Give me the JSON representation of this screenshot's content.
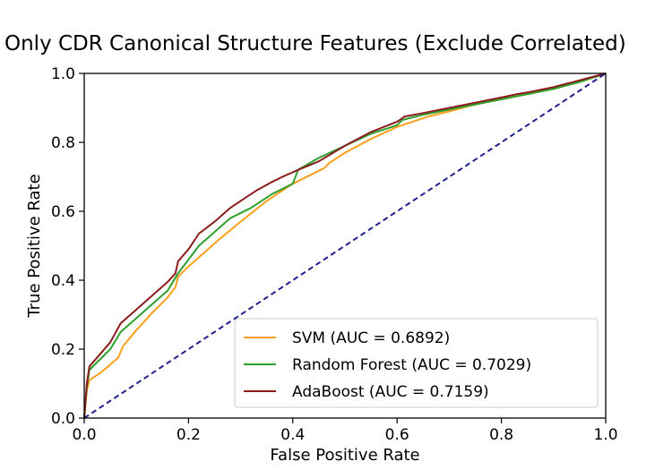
{
  "chart_data": {
    "type": "line",
    "title": "Only CDR Canonical Structure Features (Exclude Correlated)",
    "xlabel": "False Positive Rate",
    "ylabel": "True Positive Rate",
    "xlim": [
      0.0,
      1.0
    ],
    "ylim": [
      0.0,
      1.0
    ],
    "xticks": [
      "0.0",
      "0.2",
      "0.4",
      "0.6",
      "0.8",
      "1.0"
    ],
    "yticks": [
      "0.0",
      "0.2",
      "0.4",
      "0.6",
      "0.8",
      "1.0"
    ],
    "grid": false,
    "legend_position": "lower-right",
    "series": [
      {
        "name": "SVM (AUC = 0.6892)",
        "color": "#ff9e1b",
        "x": [
          0,
          0.005,
          0.01,
          0.03,
          0.05,
          0.065,
          0.075,
          0.1,
          0.13,
          0.16,
          0.175,
          0.18,
          0.2,
          0.23,
          0.26,
          0.3,
          0.35,
          0.4,
          0.44,
          0.46,
          0.47,
          0.5,
          0.55,
          0.6,
          0.65,
          0.66,
          0.7,
          0.75,
          0.8,
          0.85,
          0.9,
          0.95,
          1.0
        ],
        "y": [
          0,
          0.08,
          0.11,
          0.13,
          0.155,
          0.175,
          0.21,
          0.255,
          0.305,
          0.35,
          0.38,
          0.41,
          0.44,
          0.48,
          0.52,
          0.57,
          0.63,
          0.68,
          0.71,
          0.725,
          0.74,
          0.77,
          0.81,
          0.845,
          0.87,
          0.875,
          0.89,
          0.91,
          0.925,
          0.94,
          0.955,
          0.975,
          1.0
        ]
      },
      {
        "name": "Random Forest (AUC = 0.7029)",
        "color": "#2ca02c",
        "x": [
          0,
          0.005,
          0.01,
          0.03,
          0.05,
          0.07,
          0.1,
          0.13,
          0.16,
          0.18,
          0.2,
          0.22,
          0.25,
          0.28,
          0.32,
          0.36,
          0.38,
          0.4,
          0.41,
          0.45,
          0.5,
          0.55,
          0.6,
          0.61,
          0.65,
          0.7,
          0.75,
          0.8,
          0.85,
          0.9,
          0.95,
          1.0
        ],
        "y": [
          0,
          0.09,
          0.14,
          0.17,
          0.2,
          0.25,
          0.29,
          0.33,
          0.37,
          0.42,
          0.46,
          0.5,
          0.54,
          0.58,
          0.61,
          0.65,
          0.665,
          0.68,
          0.72,
          0.755,
          0.79,
          0.825,
          0.85,
          0.865,
          0.88,
          0.895,
          0.91,
          0.925,
          0.94,
          0.955,
          0.975,
          1.0
        ]
      },
      {
        "name": "AdaBoost (AUC = 0.7159)",
        "color": "#8b1c1c",
        "x": [
          0,
          0.005,
          0.01,
          0.03,
          0.05,
          0.07,
          0.1,
          0.13,
          0.16,
          0.175,
          0.18,
          0.2,
          0.22,
          0.25,
          0.28,
          0.31,
          0.33,
          0.36,
          0.38,
          0.41,
          0.45,
          0.5,
          0.55,
          0.6,
          0.615,
          0.65,
          0.7,
          0.75,
          0.8,
          0.83,
          0.85,
          0.9,
          0.95,
          1.0
        ],
        "y": [
          0,
          0.1,
          0.15,
          0.185,
          0.22,
          0.275,
          0.315,
          0.355,
          0.395,
          0.42,
          0.455,
          0.49,
          0.535,
          0.57,
          0.61,
          0.64,
          0.66,
          0.685,
          0.7,
          0.72,
          0.745,
          0.79,
          0.83,
          0.86,
          0.875,
          0.885,
          0.9,
          0.915,
          0.93,
          0.94,
          0.945,
          0.96,
          0.98,
          1.0
        ]
      }
    ],
    "reference_line": {
      "x": [
        0,
        1
      ],
      "y": [
        0,
        1
      ],
      "color": "#1f1f8f",
      "style": "dashed"
    }
  }
}
